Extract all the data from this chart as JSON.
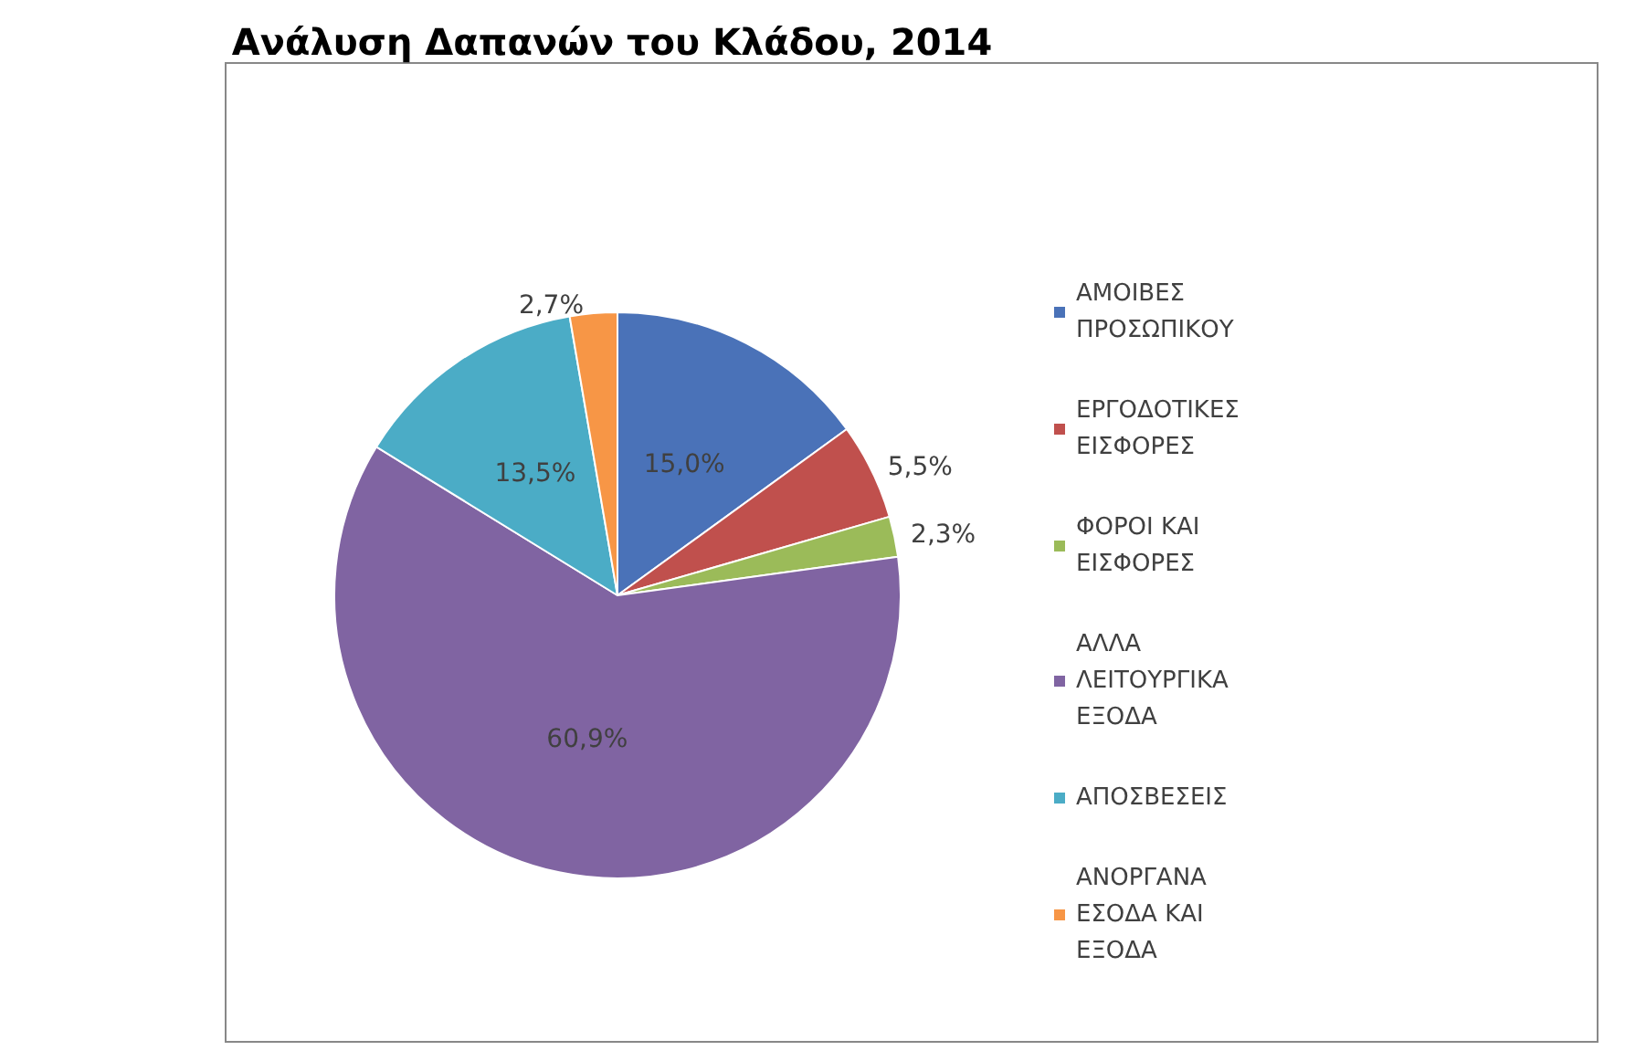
{
  "chart_data": {
    "type": "pie",
    "title": "Ανάλυση Δαπανών του Κλάδου, 2014",
    "categories": [
      "ΑΜΟΙΒΕΣ ΠΡΟΣΩΠΙΚΟΥ",
      "ΕΡΓΟΔΟΤΙΚΕΣ ΕΙΣΦΟΡΕΣ",
      "ΦΟΡΟΙ ΚΑΙ ΕΙΣΦΟΡΕΣ",
      "ΑΛΛΑ ΛΕΙΤΟΥΡΓΙΚΑ ΕΞΟΔΑ",
      "ΑΠΟΣΒΕΣΕΙΣ",
      "ΑΝΟΡΓΑΝΑ ΕΣΟΔΑ ΚΑΙ ΕΞΟΔΑ"
    ],
    "values": [
      15.0,
      5.5,
      2.3,
      60.9,
      13.5,
      2.7
    ],
    "value_labels": [
      "15,0%",
      "5,5%",
      "2,3%",
      "60,9%",
      "13,5%",
      "2,7%"
    ],
    "colors": [
      "#4a72b8",
      "#c0504d",
      "#9bbb59",
      "#8064a2",
      "#4bacc6",
      "#f79646"
    ],
    "legend": "right"
  }
}
